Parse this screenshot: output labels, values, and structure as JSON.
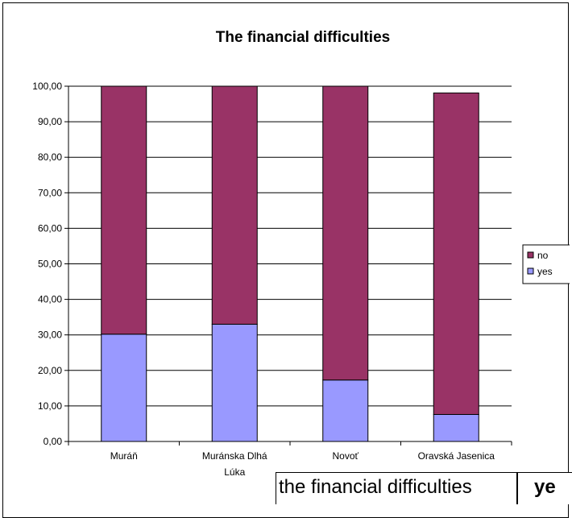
{
  "chart_data": {
    "type": "bar",
    "stacked": true,
    "title": "The financial difficulties",
    "categories": [
      "Muráň",
      "Muránska Dlhá Lúka",
      "Novoť",
      "Oravská Jasenica"
    ],
    "series": [
      {
        "name": "yes",
        "color": "#9999ff",
        "values": [
          30.2,
          33.0,
          17.3,
          7.6
        ]
      },
      {
        "name": "no",
        "color": "#993366",
        "values": [
          69.8,
          67.0,
          82.7,
          90.5
        ]
      }
    ],
    "ylim": [
      0,
      100
    ],
    "yticks": [
      "0,00",
      "10,00",
      "20,00",
      "30,00",
      "40,00",
      "50,00",
      "60,00",
      "70,00",
      "80,00",
      "90,00",
      "100,00"
    ],
    "grid": true,
    "legend": "right",
    "legend_order": [
      "no",
      "yes"
    ]
  },
  "table_strip": {
    "cells": [
      "the financial difficulties",
      "ye"
    ]
  }
}
